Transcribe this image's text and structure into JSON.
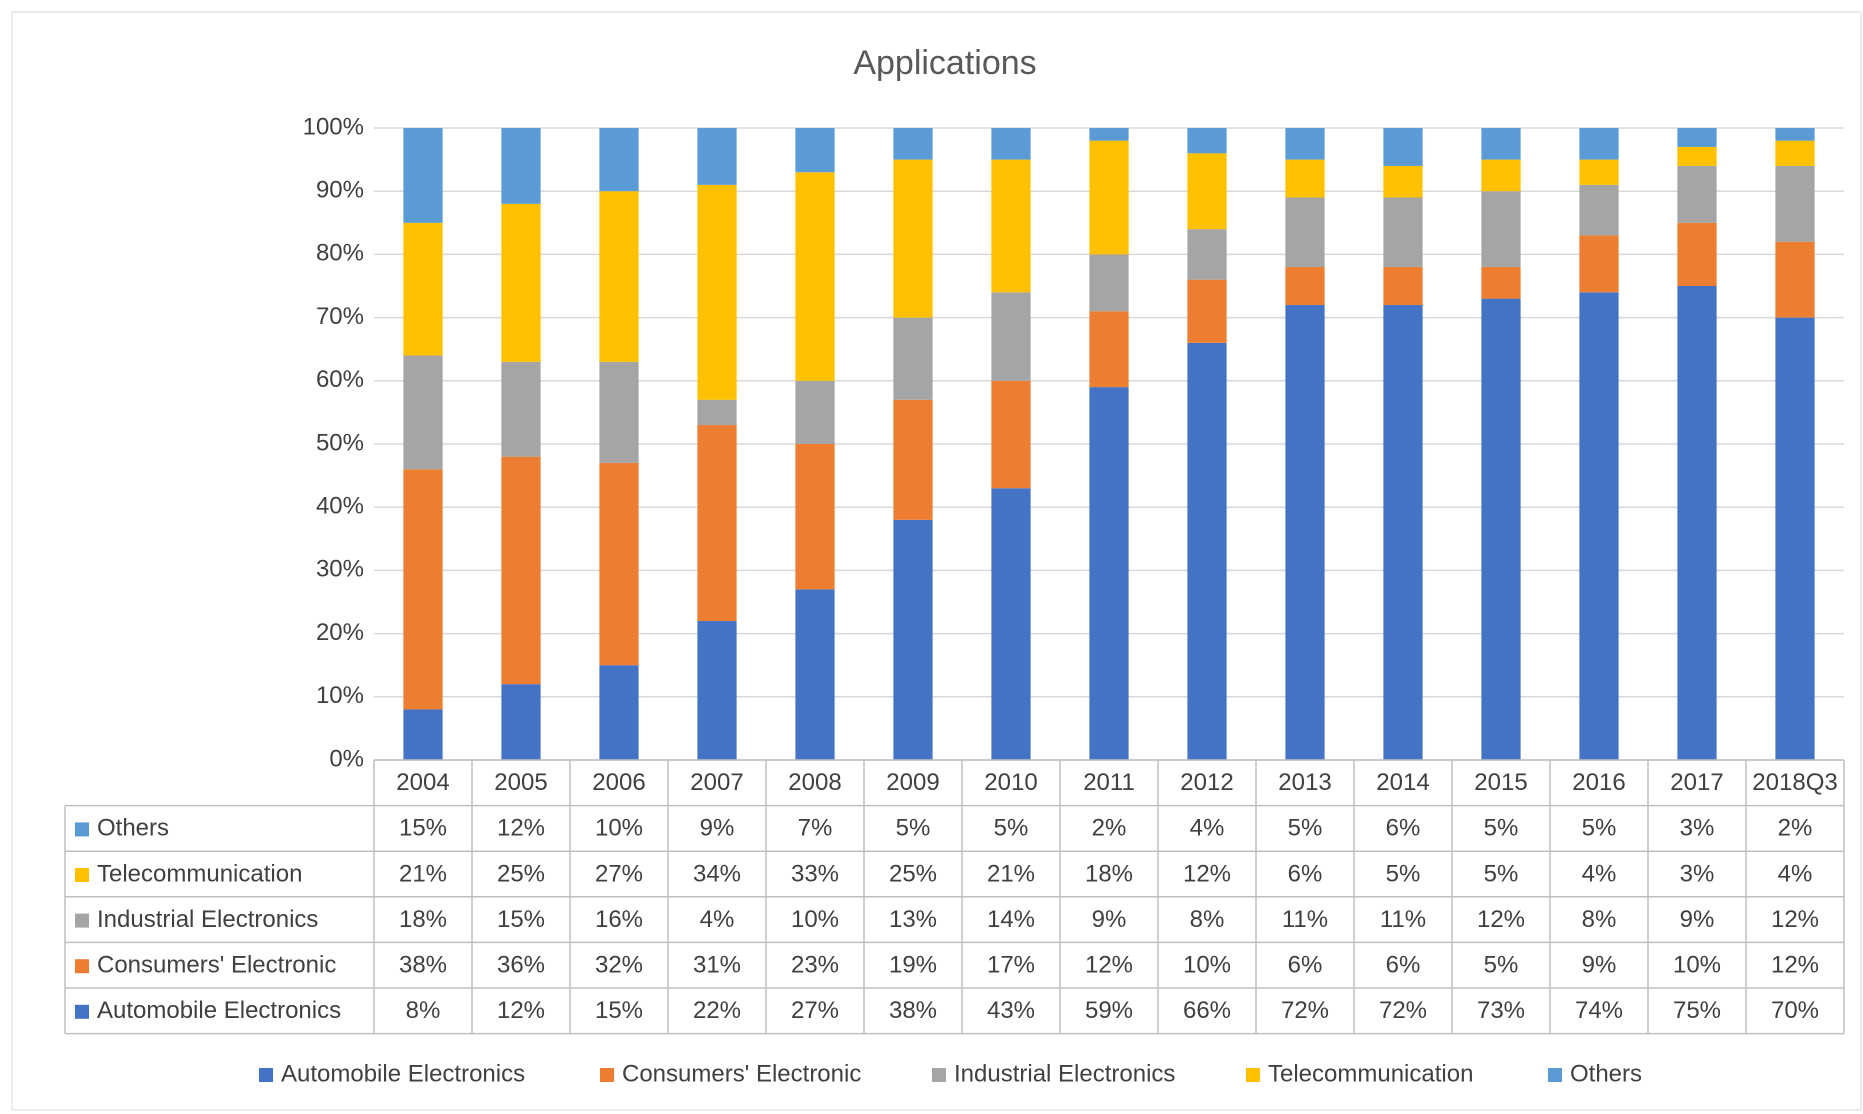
{
  "chart_data": {
    "type": "bar",
    "stacked": true,
    "title": "Applications",
    "categories": [
      "2004",
      "2005",
      "2006",
      "2007",
      "2008",
      "2009",
      "2010",
      "2011",
      "2012",
      "2013",
      "2014",
      "2015",
      "2016",
      "2017",
      "2018Q3"
    ],
    "series": [
      {
        "name": "Automobile Electronics",
        "color": "#4472c4",
        "values": [
          8,
          12,
          15,
          22,
          27,
          38,
          43,
          59,
          66,
          72,
          72,
          73,
          74,
          75,
          70
        ],
        "value_labels": [
          "8%",
          "12%",
          "15%",
          "22%",
          "27%",
          "38%",
          "43%",
          "59%",
          "66%",
          "72%",
          "72%",
          "73%",
          "74%",
          "75%",
          "70%"
        ]
      },
      {
        "name": "Consumers' Electronic",
        "color": "#ed7d31",
        "values": [
          38,
          36,
          32,
          31,
          23,
          19,
          17,
          12,
          10,
          6,
          6,
          5,
          9,
          10,
          12
        ],
        "value_labels": [
          "38%",
          "36%",
          "32%",
          "31%",
          "23%",
          "19%",
          "17%",
          "12%",
          "10%",
          "6%",
          "6%",
          "5%",
          "9%",
          "10%",
          "12%"
        ]
      },
      {
        "name": "Industrial Electronics",
        "color": "#a5a5a5",
        "values": [
          18,
          15,
          16,
          4,
          10,
          13,
          14,
          9,
          8,
          11,
          11,
          12,
          8,
          9,
          12
        ],
        "value_labels": [
          "18%",
          "15%",
          "16%",
          "4%",
          "10%",
          "13%",
          "14%",
          "9%",
          "8%",
          "11%",
          "11%",
          "12%",
          "8%",
          "9%",
          "12%"
        ]
      },
      {
        "name": "Telecommunication",
        "color": "#ffc000",
        "values": [
          21,
          25,
          27,
          34,
          33,
          25,
          21,
          18,
          12,
          6,
          5,
          5,
          4,
          3,
          4
        ],
        "value_labels": [
          "21%",
          "25%",
          "27%",
          "34%",
          "33%",
          "25%",
          "21%",
          "18%",
          "12%",
          "6%",
          "5%",
          "5%",
          "4%",
          "3%",
          "4%"
        ]
      },
      {
        "name": "Others",
        "color": "#5b9bd5",
        "values": [
          15,
          12,
          10,
          9,
          7,
          5,
          5,
          2,
          4,
          5,
          6,
          5,
          5,
          3,
          2
        ],
        "value_labels": [
          "15%",
          "12%",
          "10%",
          "9%",
          "7%",
          "5%",
          "5%",
          "2%",
          "4%",
          "5%",
          "6%",
          "5%",
          "5%",
          "3%",
          "2%"
        ]
      }
    ],
    "ylim": [
      0,
      100
    ],
    "yticks": [
      {
        "value": 0,
        "label": "0%"
      },
      {
        "value": 10,
        "label": "10%"
      },
      {
        "value": 20,
        "label": "20%"
      },
      {
        "value": 30,
        "label": "30%"
      },
      {
        "value": 40,
        "label": "40%"
      },
      {
        "value": 50,
        "label": "50%"
      },
      {
        "value": 60,
        "label": "60%"
      },
      {
        "value": 70,
        "label": "70%"
      },
      {
        "value": 80,
        "label": "80%"
      },
      {
        "value": 90,
        "label": "90%"
      },
      {
        "value": 100,
        "label": "100%"
      }
    ],
    "grid": true,
    "legend": "bottom",
    "data_table": true
  }
}
